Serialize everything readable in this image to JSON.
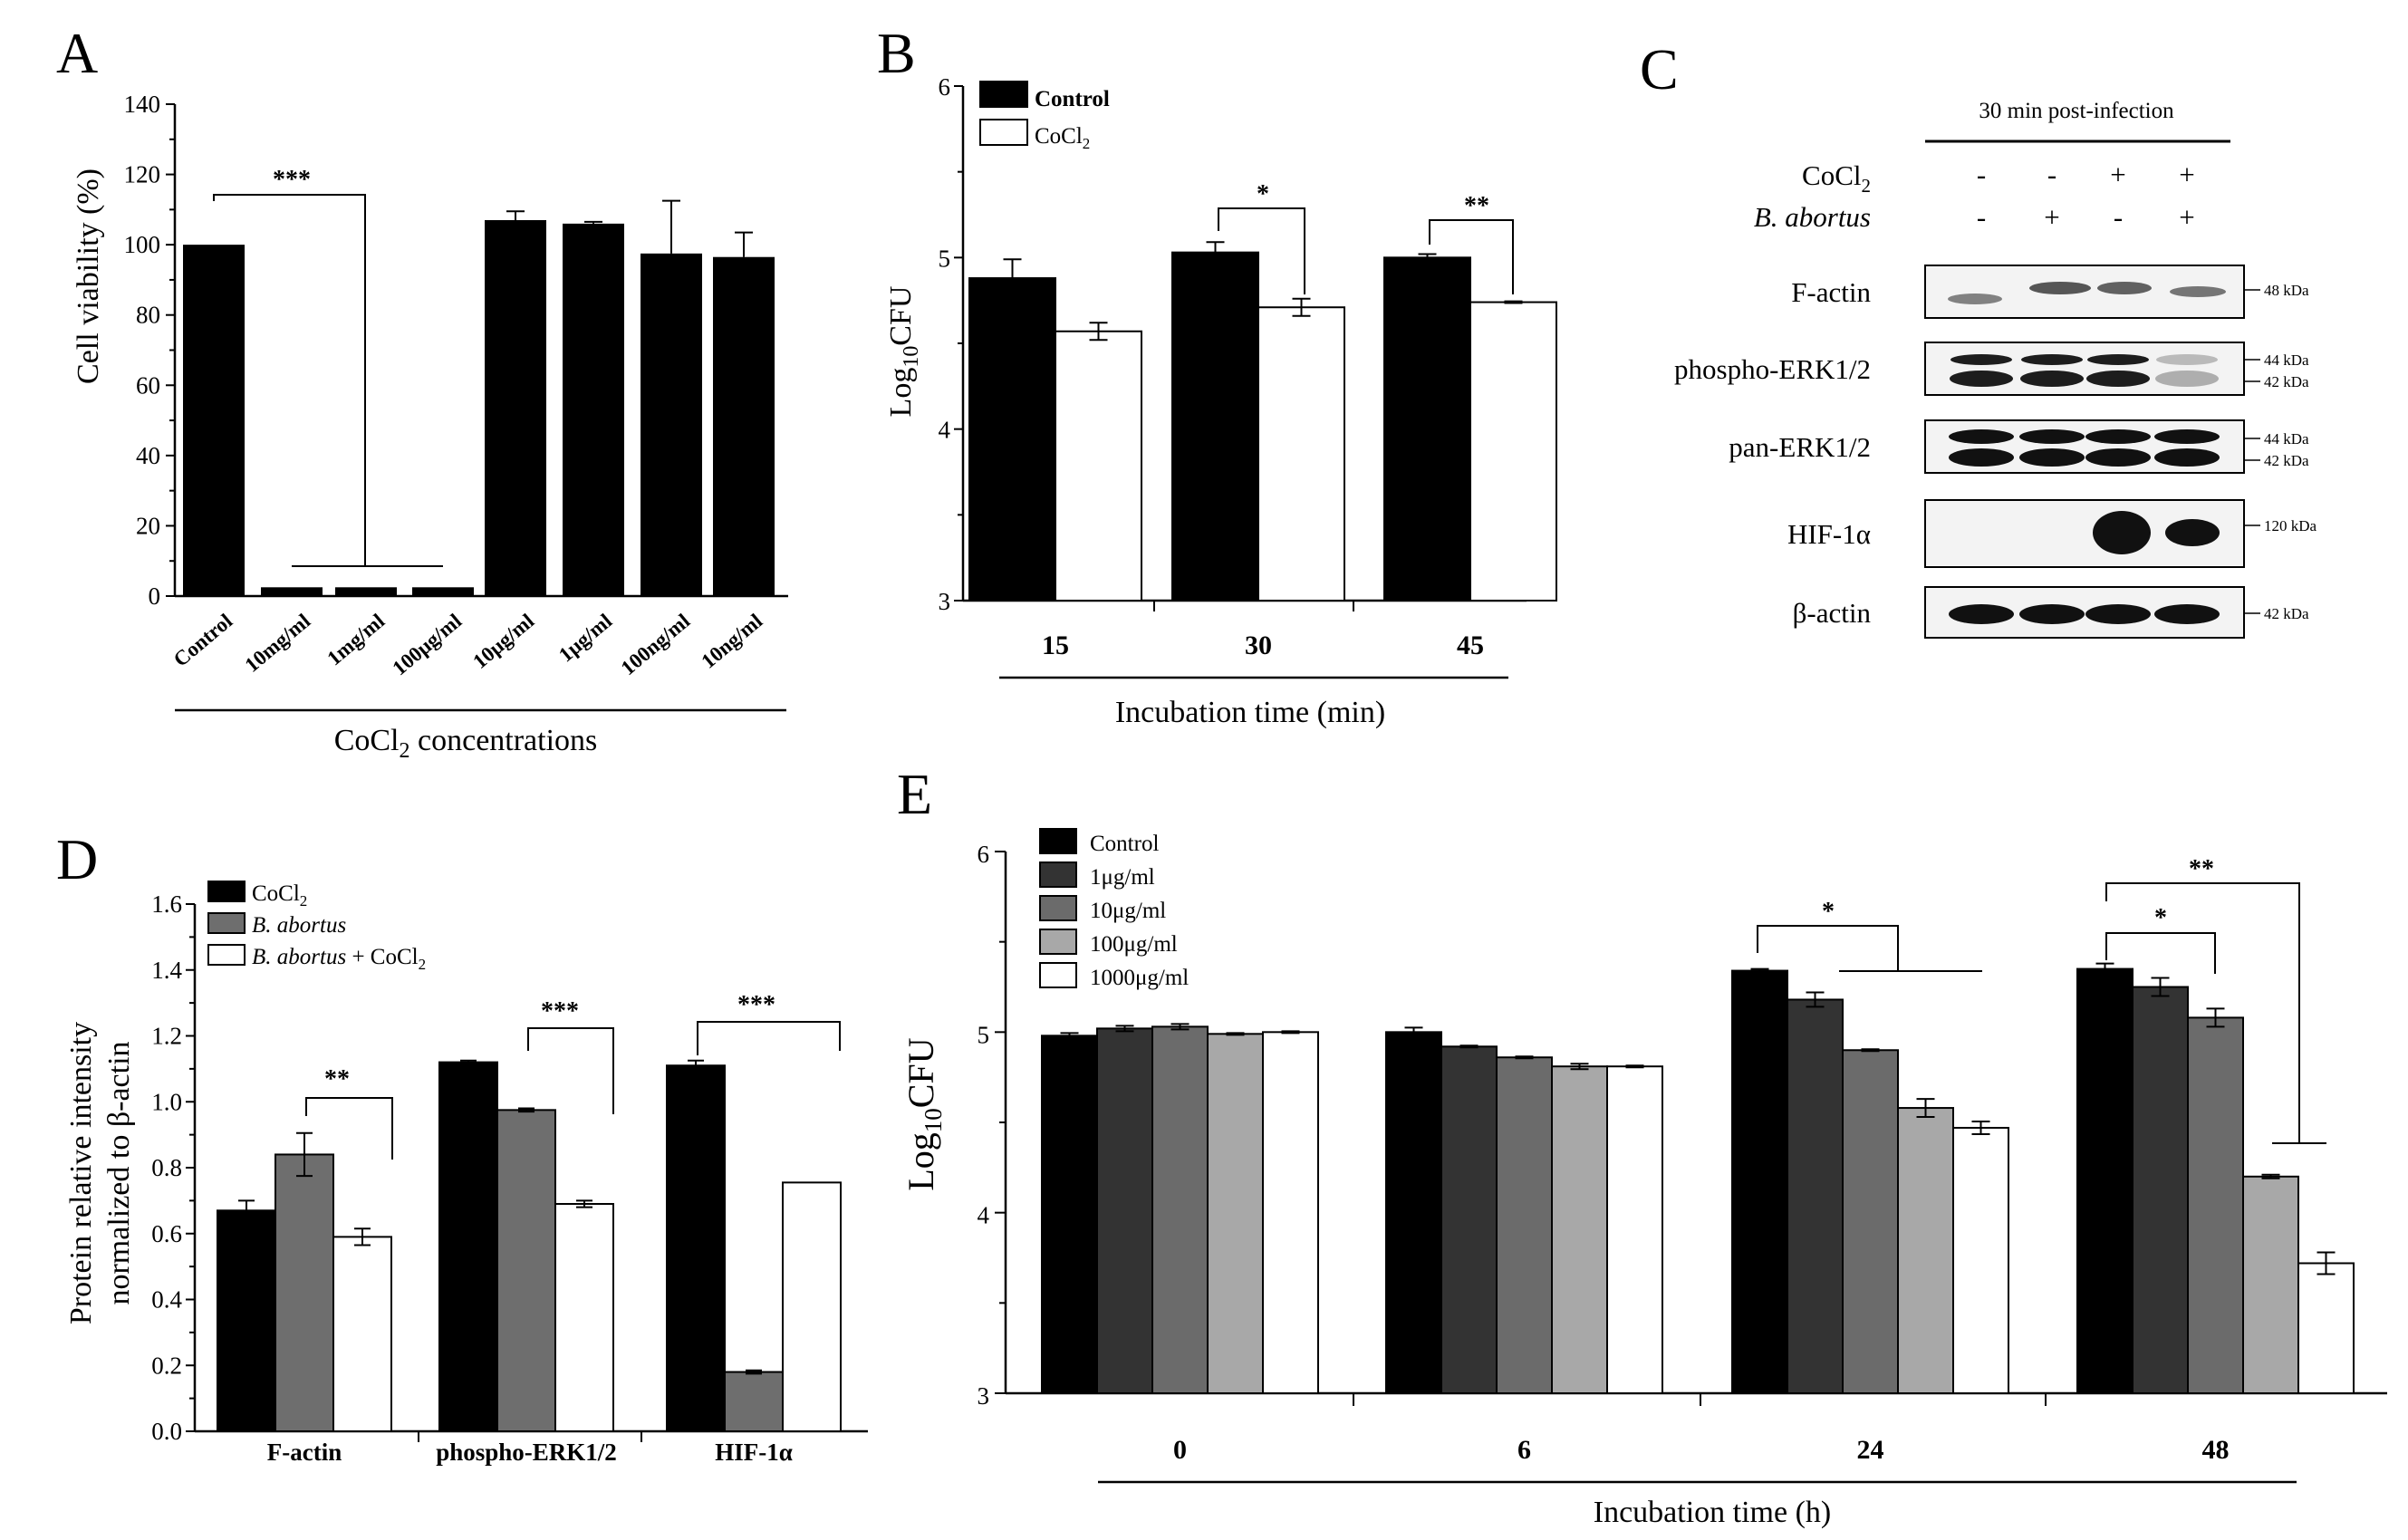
{
  "chart_data": [
    {
      "panel": "A",
      "type": "bar",
      "title": "",
      "xlabel": "CoCl2 concentrations",
      "ylabel": "Cell viability (%)",
      "ylim": [
        0,
        140
      ],
      "yticks": [
        "0",
        "20",
        "40",
        "60",
        "80",
        "100",
        "120",
        "140"
      ],
      "categories": [
        "Control",
        "10mg/ml",
        "1mg/ml",
        "100μg/ml",
        "10μg/ml",
        "1μg/ml",
        "100ng/ml",
        "10ng/ml"
      ],
      "values": [
        100,
        2.5,
        2.5,
        2.5,
        107,
        106,
        97.5,
        96.5
      ],
      "errors": [
        0,
        0,
        0,
        0,
        2.5,
        0.5,
        15,
        7
      ],
      "significance": [
        {
          "label": "***",
          "from": "Control",
          "to": "10mg/ml … 100μg/ml"
        }
      ]
    },
    {
      "panel": "B",
      "type": "bar",
      "xlabel": "Incubation time (min)",
      "ylabel": "Log10CFU",
      "ylim": [
        3,
        6
      ],
      "yticks": [
        "3",
        "4",
        "5",
        "6"
      ],
      "categories": [
        "15",
        "30",
        "45"
      ],
      "series": [
        {
          "name": "Control",
          "values": [
            4.88,
            5.03,
            5.0
          ],
          "errors": [
            0.11,
            0.06,
            0.02
          ]
        },
        {
          "name": "CoCl2",
          "values": [
            4.57,
            4.71,
            4.74
          ],
          "errors": [
            0.05,
            0.05,
            0.005
          ]
        }
      ],
      "significance": [
        {
          "label": "*",
          "category": "30"
        },
        {
          "label": "**",
          "category": "45"
        }
      ]
    },
    {
      "panel": "C",
      "type": "table",
      "title": "30 min post-infection",
      "conditions": [
        {
          "row": "CoCl2",
          "values": [
            "-",
            "-",
            "+",
            "+"
          ]
        },
        {
          "row": "B. abortus",
          "values": [
            "-",
            "+",
            "-",
            "+"
          ]
        }
      ],
      "blots": [
        {
          "label": "F-actin",
          "markers": [
            "48 kDa"
          ]
        },
        {
          "label": "phospho-ERK1/2",
          "markers": [
            "44 kDa",
            "42 kDa"
          ]
        },
        {
          "label": "pan-ERK1/2",
          "markers": [
            "44 kDa",
            "42 kDa"
          ]
        },
        {
          "label": "HIF-1α",
          "markers": [
            "120 kDa"
          ]
        },
        {
          "label": "β-actin",
          "markers": [
            "42 kDa"
          ]
        }
      ]
    },
    {
      "panel": "D",
      "type": "bar",
      "xlabel": "",
      "ylabel": "Protein relative intensity normalized to β-actin",
      "ylim": [
        0,
        1.6
      ],
      "yticks": [
        "0.0",
        "0.2",
        "0.4",
        "0.6",
        "0.8",
        "1.0",
        "1.2",
        "1.4",
        "1.6"
      ],
      "categories": [
        "F-actin",
        "phospho-ERK1/2",
        "HIF-1α"
      ],
      "series": [
        {
          "name": "CoCl2",
          "values": [
            0.67,
            1.12,
            1.11
          ],
          "errors": [
            0.03,
            0.005,
            0.015
          ]
        },
        {
          "name": "B. abortus",
          "values": [
            0.84,
            0.975,
            0.18
          ],
          "errors": [
            0.065,
            0.005,
            0.005
          ]
        },
        {
          "name": "B. abortus + CoCl2",
          "values": [
            0.59,
            0.69,
            0.755
          ],
          "errors": [
            0.025,
            0.01,
            0.0
          ]
        }
      ],
      "significance": [
        {
          "label": "**",
          "category": "F-actin"
        },
        {
          "label": "***",
          "category": "phospho-ERK1/2"
        },
        {
          "label": "***",
          "category": "HIF-1α"
        }
      ]
    },
    {
      "panel": "E",
      "type": "bar",
      "xlabel": "Incubation time (h)",
      "ylabel": "Log10CFU",
      "ylim": [
        3,
        6
      ],
      "yticks": [
        "3",
        "4",
        "5",
        "6"
      ],
      "categories": [
        "0",
        "6",
        "24",
        "48"
      ],
      "series": [
        {
          "name": "Control",
          "values": [
            4.98,
            5.0,
            5.34,
            5.35
          ],
          "errors": [
            0.015,
            0.025,
            0.01,
            0.03
          ]
        },
        {
          "name": "1μg/ml",
          "values": [
            5.02,
            4.92,
            5.18,
            5.25
          ],
          "errors": [
            0.015,
            0.005,
            0.04,
            0.05
          ]
        },
        {
          "name": "10μg/ml",
          "values": [
            5.03,
            4.86,
            4.9,
            5.08
          ],
          "errors": [
            0.015,
            0.005,
            0.005,
            0.05
          ]
        },
        {
          "name": "100μg/ml",
          "values": [
            4.99,
            4.81,
            4.58,
            4.2
          ],
          "errors": [
            0.005,
            0.015,
            0.05,
            0.01
          ]
        },
        {
          "name": "1000μg/ml",
          "values": [
            5.0,
            4.81,
            4.47,
            3.72
          ],
          "errors": [
            0.005,
            0.005,
            0.035,
            0.06
          ]
        }
      ],
      "significance": [
        {
          "label": "*",
          "category": "24"
        },
        {
          "label": "*",
          "category": "48"
        },
        {
          "label": "**",
          "category": "48"
        }
      ]
    }
  ],
  "panels": {
    "A": {
      "letter": "A",
      "stars": "***"
    },
    "B": {
      "letter": "B",
      "stars1": "*",
      "stars2": "**",
      "legend": [
        "Control",
        "CoCl"
      ]
    },
    "C": {
      "letter": "C",
      "header": "30 min post-infection",
      "row1": "CoCl",
      "row2": "B. abortus",
      "row1_vals": [
        "-",
        "-",
        "+",
        "+"
      ],
      "row2_vals": [
        "-",
        "+",
        "-",
        "+"
      ],
      "labels": [
        "F-actin",
        "phospho-ERK1/2",
        "pan-ERK1/2",
        "HIF-1α",
        "β-actin"
      ],
      "kda": {
        "f": "48 kDa",
        "p44": "44 kDa",
        "p42": "42 kDa",
        "e44": "44 kDa",
        "e42": "42 kDa",
        "hif": "120 kDa",
        "b": "42 kDa"
      }
    },
    "D": {
      "letter": "D",
      "stars": [
        "**",
        "***",
        "***"
      ],
      "legend": [
        "CoCl",
        "B. abortus",
        "B. abortus",
        " + CoCl"
      ],
      "ylabel1": "Protein relative intensity",
      "ylabel2": "normalized to β-actin"
    },
    "E": {
      "letter": "E",
      "stars": [
        "*",
        "*",
        "**"
      ],
      "legend": [
        "Control",
        "1μg/ml",
        "10μg/ml",
        "100μg/ml",
        "1000μg/ml"
      ]
    },
    "subscripts": {
      "two": "2",
      "ten": "10"
    },
    "ylabel_log": "Log",
    "ylabel_cfu": "CFU"
  },
  "colors": {
    "black": "#000000",
    "white": "#ffffff",
    "d_grey": "#6e6e6e",
    "e_series": [
      "#000000",
      "#333333",
      "#6b6b6b",
      "#a8a8a8",
      "#ffffff"
    ]
  }
}
